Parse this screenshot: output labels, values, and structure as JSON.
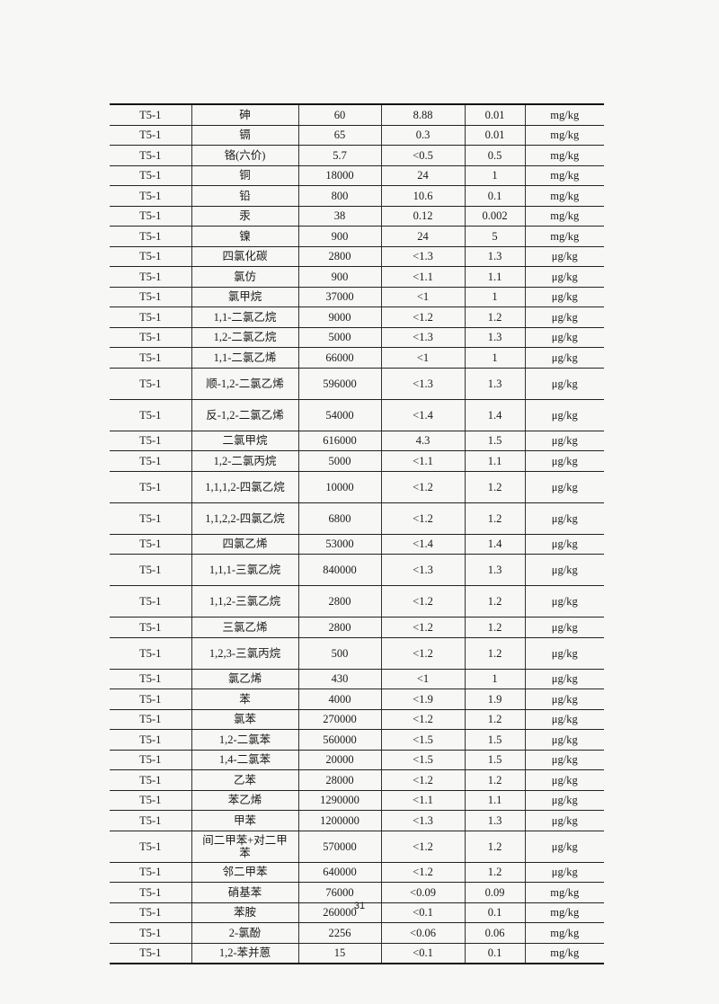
{
  "table": {
    "rows": [
      [
        "T5-1",
        "砷",
        "60",
        "8.88",
        "0.01",
        "mg/kg"
      ],
      [
        "T5-1",
        "镉",
        "65",
        "0.3",
        "0.01",
        "mg/kg"
      ],
      [
        "T5-1",
        "铬(六价)",
        "5.7",
        "<0.5",
        "0.5",
        "mg/kg"
      ],
      [
        "T5-1",
        "铜",
        "18000",
        "24",
        "1",
        "mg/kg"
      ],
      [
        "T5-1",
        "铅",
        "800",
        "10.6",
        "0.1",
        "mg/kg"
      ],
      [
        "T5-1",
        "汞",
        "38",
        "0.12",
        "0.002",
        "mg/kg"
      ],
      [
        "T5-1",
        "镍",
        "900",
        "24",
        "5",
        "mg/kg"
      ],
      [
        "T5-1",
        "四氯化碳",
        "2800",
        "<1.3",
        "1.3",
        "μg/kg"
      ],
      [
        "T5-1",
        "氯仿",
        "900",
        "<1.1",
        "1.1",
        "μg/kg"
      ],
      [
        "T5-1",
        "氯甲烷",
        "37000",
        "<1",
        "1",
        "μg/kg"
      ],
      [
        "T5-1",
        "1,1-二氯乙烷",
        "9000",
        "<1.2",
        "1.2",
        "μg/kg"
      ],
      [
        "T5-1",
        "1,2-二氯乙烷",
        "5000",
        "<1.3",
        "1.3",
        "μg/kg"
      ],
      [
        "T5-1",
        "1,1-二氯乙烯",
        "66000",
        "<1",
        "1",
        "μg/kg"
      ],
      [
        "T5-1",
        "顺-1,2-二氯乙烯",
        "596000",
        "<1.3",
        "1.3",
        "μg/kg"
      ],
      [
        "T5-1",
        "反-1,2-二氯乙烯",
        "54000",
        "<1.4",
        "1.4",
        "μg/kg"
      ],
      [
        "T5-1",
        "二氯甲烷",
        "616000",
        "4.3",
        "1.5",
        "μg/kg"
      ],
      [
        "T5-1",
        "1,2-二氯丙烷",
        "5000",
        "<1.1",
        "1.1",
        "μg/kg"
      ],
      [
        "T5-1",
        "1,1,1,2-四氯乙烷",
        "10000",
        "<1.2",
        "1.2",
        "μg/kg"
      ],
      [
        "T5-1",
        "1,1,2,2-四氯乙烷",
        "6800",
        "<1.2",
        "1.2",
        "μg/kg"
      ],
      [
        "T5-1",
        "四氯乙烯",
        "53000",
        "<1.4",
        "1.4",
        "μg/kg"
      ],
      [
        "T5-1",
        "1,1,1-三氯乙烷",
        "840000",
        "<1.3",
        "1.3",
        "μg/kg"
      ],
      [
        "T5-1",
        "1,1,2-三氯乙烷",
        "2800",
        "<1.2",
        "1.2",
        "μg/kg"
      ],
      [
        "T5-1",
        "三氯乙烯",
        "2800",
        "<1.2",
        "1.2",
        "μg/kg"
      ],
      [
        "T5-1",
        "1,2,3-三氯丙烷",
        "500",
        "<1.2",
        "1.2",
        "μg/kg"
      ],
      [
        "T5-1",
        "氯乙烯",
        "430",
        "<1",
        "1",
        "μg/kg"
      ],
      [
        "T5-1",
        "苯",
        "4000",
        "<1.9",
        "1.9",
        "μg/kg"
      ],
      [
        "T5-1",
        "氯苯",
        "270000",
        "<1.2",
        "1.2",
        "μg/kg"
      ],
      [
        "T5-1",
        "1,2-二氯苯",
        "560000",
        "<1.5",
        "1.5",
        "μg/kg"
      ],
      [
        "T5-1",
        "1,4-二氯苯",
        "20000",
        "<1.5",
        "1.5",
        "μg/kg"
      ],
      [
        "T5-1",
        "乙苯",
        "28000",
        "<1.2",
        "1.2",
        "μg/kg"
      ],
      [
        "T5-1",
        "苯乙烯",
        "1290000",
        "<1.1",
        "1.1",
        "μg/kg"
      ],
      [
        "T5-1",
        "甲苯",
        "1200000",
        "<1.3",
        "1.3",
        "μg/kg"
      ],
      [
        "T5-1",
        "间二甲苯+对二甲苯",
        "570000",
        "<1.2",
        "1.2",
        "μg/kg"
      ],
      [
        "T5-1",
        "邻二甲苯",
        "640000",
        "<1.2",
        "1.2",
        "μg/kg"
      ],
      [
        "T5-1",
        "硝基苯",
        "76000",
        "<0.09",
        "0.09",
        "mg/kg"
      ],
      [
        "T5-1",
        "苯胺",
        "260000",
        "<0.1",
        "0.1",
        "mg/kg"
      ],
      [
        "T5-1",
        "2-氯酚",
        "2256",
        "<0.06",
        "0.06",
        "mg/kg"
      ],
      [
        "T5-1",
        "1,2-苯并蒽",
        "15",
        "<0.1",
        "0.1",
        "mg/kg"
      ]
    ]
  },
  "page_number": "31"
}
